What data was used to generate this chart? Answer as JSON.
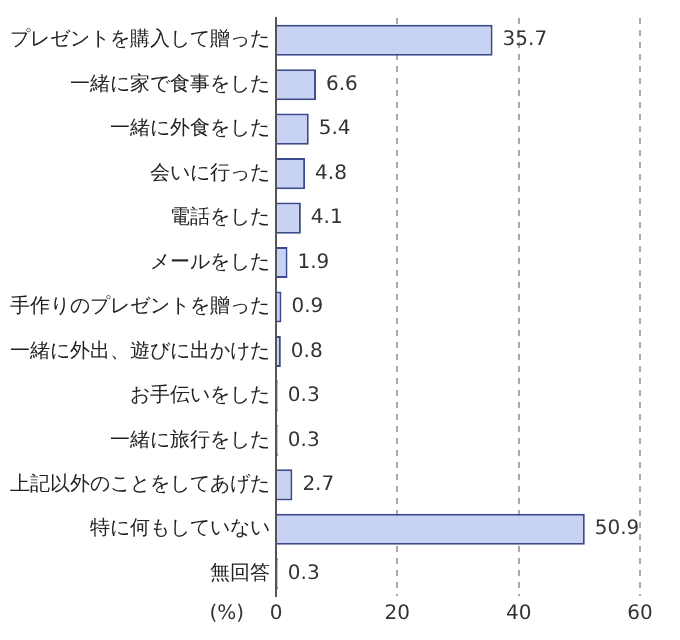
{
  "chart_data": {
    "type": "bar",
    "orientation": "horizontal",
    "categories": [
      "プレゼントを購入して贈った",
      "一緒に家で食事をした",
      "一緒に外食をした",
      "会いに行った",
      "電話をした",
      "メールをした",
      "手作りのプレゼントを贈った",
      "一緒に外出、遊びに出かけた",
      "お手伝いをした",
      "一緒に旅行をした",
      "上記以外のことをしてあげた",
      "特に何もしていない",
      "無回答"
    ],
    "values": [
      35.7,
      6.6,
      5.4,
      4.8,
      4.1,
      1.9,
      0.9,
      0.8,
      0.3,
      0.3,
      2.7,
      50.9,
      0.3
    ],
    "color": "#c8d2f2",
    "xlabel": "(%)",
    "xlim": [
      0,
      60
    ],
    "xticks": [
      0,
      20,
      40,
      60
    ],
    "grid": "x",
    "data_labels": true,
    "legend": false
  }
}
